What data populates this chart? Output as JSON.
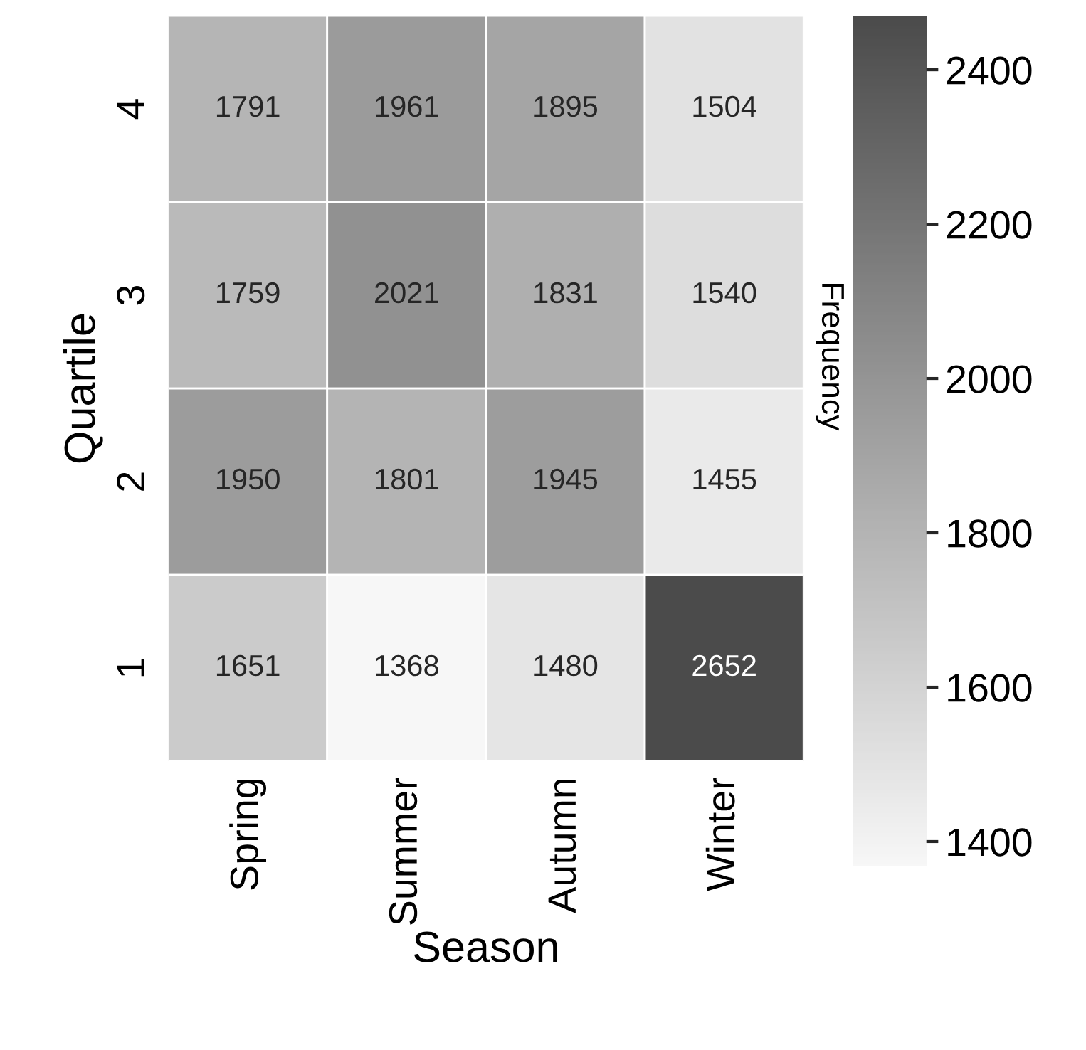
{
  "chart_data": {
    "type": "heatmap",
    "xlabel": "Season",
    "ylabel": "Quartile",
    "clabel": "Frequency",
    "categories": [
      "Spring",
      "Summer",
      "Autumn",
      "Winter"
    ],
    "y_categories": [
      "4",
      "3",
      "2",
      "1"
    ],
    "cells": [
      [
        1791,
        1961,
        1895,
        1504
      ],
      [
        1759,
        2021,
        1831,
        1540
      ],
      [
        1950,
        1801,
        1945,
        1455
      ],
      [
        1651,
        1368,
        1480,
        2652
      ]
    ],
    "data_labels": true,
    "clim": [
      1368,
      2470
    ],
    "cticks": [
      1400,
      1600,
      1800,
      2000,
      2200,
      2400
    ]
  }
}
